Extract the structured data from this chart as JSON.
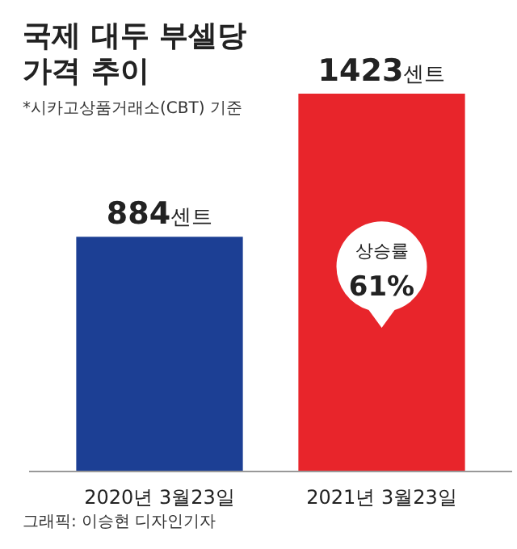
{
  "chart_data": {
    "type": "bar",
    "title": "국제 대두 부셀당\n가격 추이",
    "subtitle": "*시카고상품거래소(CBT) 기준",
    "categories": [
      "2020년 3월23일",
      "2021년 3월23일"
    ],
    "values": [
      884,
      1423
    ],
    "colors": [
      "#1c3f94",
      "#e8252b"
    ],
    "value_labels": [
      "884센트",
      "1423센트"
    ],
    "annotations": [
      "상승률 61%",
      "그래픽: 이승현 디자인기자"
    ]
  }
}
